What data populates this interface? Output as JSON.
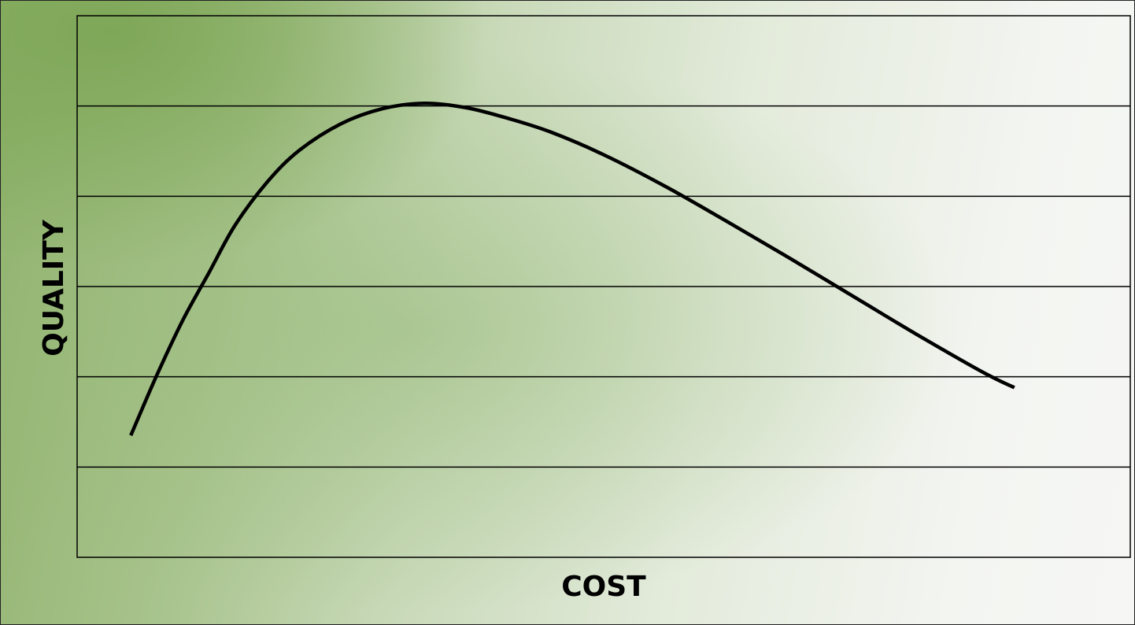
{
  "chart_data": {
    "type": "line",
    "title": "",
    "xlabel": "COST",
    "ylabel": "QUALITY",
    "grid": true,
    "legend": "none",
    "xlim": [
      0,
      100
    ],
    "ylim": [
      0,
      6
    ],
    "series": [
      {
        "color": "#000000",
        "points": [
          [
            5.1,
            1.35
          ],
          [
            7.5,
            2.0
          ],
          [
            10.0,
            2.62
          ],
          [
            12.5,
            3.15
          ],
          [
            15.0,
            3.68
          ],
          [
            18.0,
            4.15
          ],
          [
            21.0,
            4.5
          ],
          [
            25.0,
            4.8
          ],
          [
            29.0,
            4.97
          ],
          [
            33.0,
            5.03
          ],
          [
            37.0,
            4.98
          ],
          [
            41.0,
            4.86
          ],
          [
            45.0,
            4.71
          ],
          [
            50.0,
            4.46
          ],
          [
            56.0,
            4.1
          ],
          [
            62.0,
            3.7
          ],
          [
            68.0,
            3.29
          ],
          [
            74.0,
            2.87
          ],
          [
            80.0,
            2.45
          ],
          [
            86.0,
            2.05
          ],
          [
            89.0,
            1.88
          ]
        ]
      }
    ]
  },
  "colors": {
    "line": "#000000",
    "grid": "#000000",
    "background_accent": "#7da656"
  }
}
